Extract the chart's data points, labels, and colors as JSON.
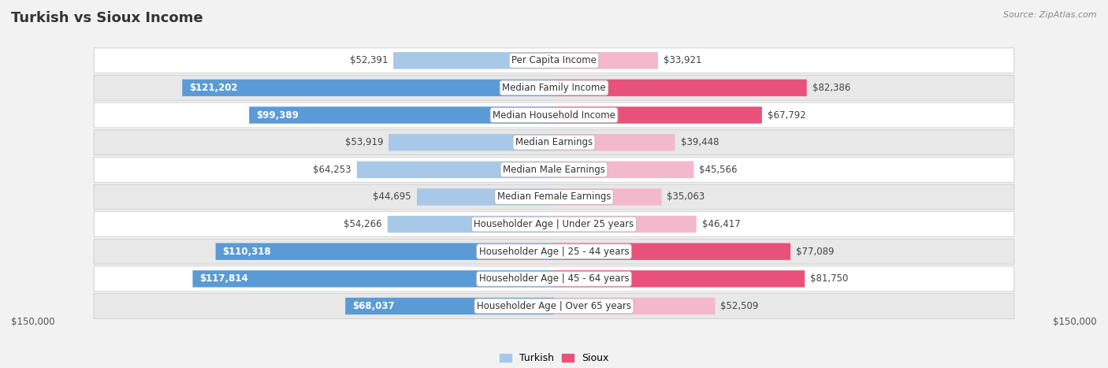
{
  "title": "Turkish vs Sioux Income",
  "source": "Source: ZipAtlas.com",
  "categories": [
    "Per Capita Income",
    "Median Family Income",
    "Median Household Income",
    "Median Earnings",
    "Median Male Earnings",
    "Median Female Earnings",
    "Householder Age | Under 25 years",
    "Householder Age | 25 - 44 years",
    "Householder Age | 45 - 64 years",
    "Householder Age | Over 65 years"
  ],
  "turkish_values": [
    52391,
    121202,
    99389,
    53919,
    64253,
    44695,
    54266,
    110318,
    117814,
    68037
  ],
  "sioux_values": [
    33921,
    82386,
    67792,
    39448,
    45566,
    35063,
    46417,
    77089,
    81750,
    52509
  ],
  "turkish_labels": [
    "$52,391",
    "$121,202",
    "$99,389",
    "$53,919",
    "$64,253",
    "$44,695",
    "$54,266",
    "$110,318",
    "$117,814",
    "$68,037"
  ],
  "sioux_labels": [
    "$33,921",
    "$82,386",
    "$67,792",
    "$39,448",
    "$45,566",
    "$35,063",
    "$46,417",
    "$77,089",
    "$81,750",
    "$52,509"
  ],
  "turkish_color_light": "#a8c8e8",
  "turkish_color_dark": "#5b9bd5",
  "sioux_color_light": "#f4b8cc",
  "sioux_color_dark": "#e8527a",
  "inside_label_threshold": 0.45,
  "max_value": 150000,
  "x_label_left": "$150,000",
  "x_label_right": "$150,000",
  "legend_turkish": "Turkish",
  "legend_sioux": "Sioux",
  "bg_color": "#f2f2f2",
  "row_bg_even": "#ffffff",
  "row_bg_odd": "#e8e8e8",
  "title_fontsize": 13,
  "label_fontsize": 8.5,
  "category_fontsize": 8.5
}
